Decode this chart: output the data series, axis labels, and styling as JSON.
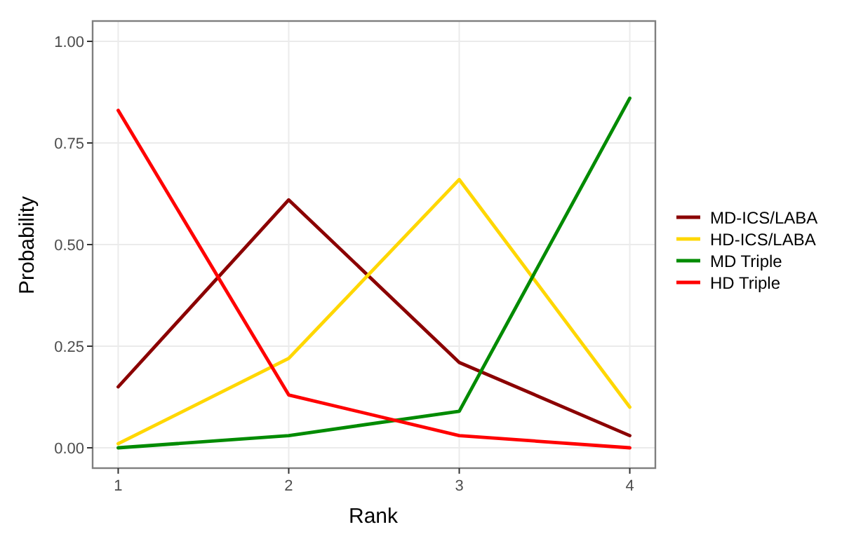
{
  "chart_data": {
    "type": "line",
    "xlabel": "Rank",
    "ylabel": "Probability",
    "x": [
      1,
      2,
      3,
      4
    ],
    "xlim": [
      0.85,
      4.15
    ],
    "xticks": [
      1,
      2,
      3,
      4
    ],
    "ylim": [
      -0.05,
      1.05
    ],
    "yticks": [
      {
        "value": 0,
        "label": "0.00"
      },
      {
        "value": 0.25,
        "label": "0.25"
      },
      {
        "value": 0.5,
        "label": "0.50"
      },
      {
        "value": 0.75,
        "label": "0.75"
      },
      {
        "value": 1,
        "label": "1.00"
      }
    ],
    "grid": true,
    "legend": "right",
    "marker": "none",
    "line_style": "solid",
    "series": [
      {
        "name": "MD-ICS/LABA",
        "color": "#8b0000",
        "values": [
          0.15,
          0.61,
          0.21,
          0.03
        ]
      },
      {
        "name": "HD-ICS/LABA",
        "color": "#ffd700",
        "values": [
          0.01,
          0.22,
          0.66,
          0.1
        ]
      },
      {
        "name": "MD Triple",
        "color": "#008b00",
        "values": [
          0.0,
          0.03,
          0.09,
          0.86
        ]
      },
      {
        "name": "HD Triple",
        "color": "#ff0000",
        "values": [
          0.83,
          0.13,
          0.03,
          0.0
        ]
      }
    ]
  }
}
